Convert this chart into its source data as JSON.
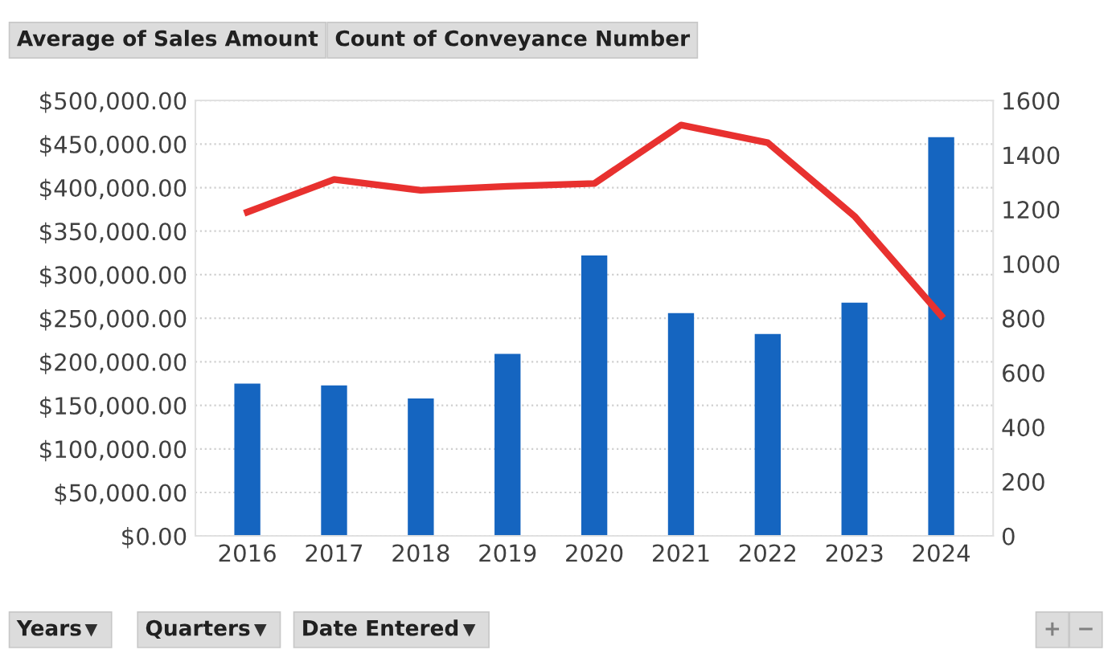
{
  "chart_data": {
    "type": "bar",
    "categories": [
      "2016",
      "2017",
      "2018",
      "2019",
      "2020",
      "2021",
      "2022",
      "2023",
      "2024"
    ],
    "series": [
      {
        "color": "#1565c0",
        "values": [
          175000,
          173000,
          158000,
          209000,
          322000,
          256000,
          232000,
          268000,
          458000
        ]
      },
      {
        "type": "line",
        "axis": "y2",
        "color": "#e8312f",
        "values": [
          1190,
          1310,
          1270,
          1285,
          1295,
          1510,
          1445,
          1175,
          810
        ]
      }
    ],
    "ylim": [
      0,
      500000
    ],
    "yticks": [
      {
        "value": 0,
        "label": "$0.00"
      },
      {
        "value": 50000,
        "label": "$50,000.00"
      },
      {
        "value": 100000,
        "label": "$100,000.00"
      },
      {
        "value": 150000,
        "label": "$150,000.00"
      },
      {
        "value": 200000,
        "label": "$200,000.00"
      },
      {
        "value": 250000,
        "label": "$250,000.00"
      },
      {
        "value": 300000,
        "label": "$300,000.00"
      },
      {
        "value": 350000,
        "label": "$350,000.00"
      },
      {
        "value": 400000,
        "label": "$400,000.00"
      },
      {
        "value": 450000,
        "label": "$450,000.00"
      },
      {
        "value": 500000,
        "label": "$500,000.00"
      }
    ],
    "y2lim": [
      0,
      1600
    ],
    "y2ticks": [
      0,
      200,
      400,
      600,
      800,
      1000,
      1200,
      1400,
      1600
    ],
    "grid": "y",
    "marker": "none",
    "line_style": "solid",
    "annotations": [
      "Average of Sales Amount",
      "Count of Conveyance Number",
      "Years",
      "Quarters",
      "Date Entered",
      "+",
      "−"
    ]
  }
}
